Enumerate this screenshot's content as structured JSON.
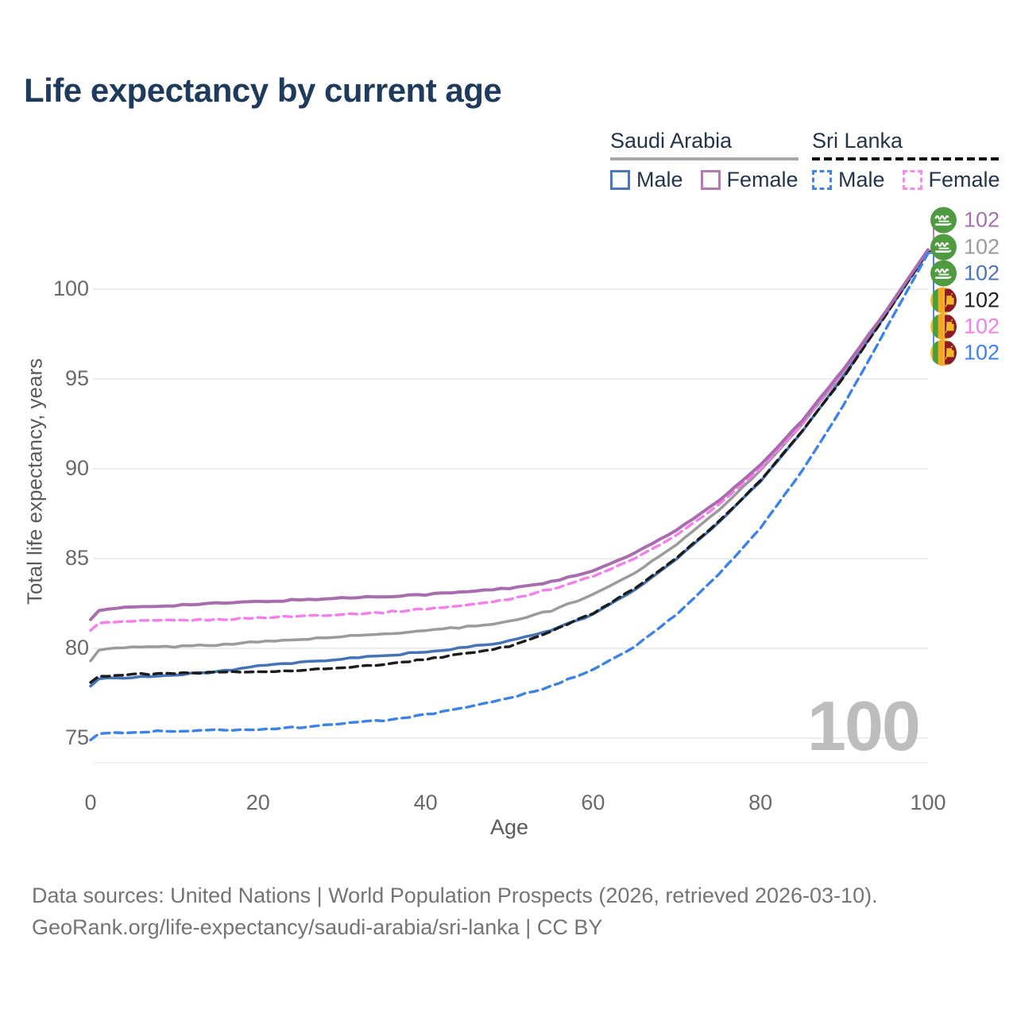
{
  "title": "Life expectancy by current age",
  "legend": {
    "saudi_arabia": {
      "label": "Saudi Arabia",
      "male": "Male",
      "female": "Female"
    },
    "sri_lanka": {
      "label": "Sri Lanka",
      "male": "Male",
      "female": "Female"
    }
  },
  "watermark": "100",
  "footer": {
    "line1": "Data sources: United Nations | World Population Prospects (2026, retrieved 2026-03-10).",
    "line2": "GeoRank.org/life-expectancy/saudi-arabia/sri-lanka | CC BY"
  },
  "colors": {
    "title": "#1e3a5c",
    "gridline": "#e7e7e7",
    "axis_text": "#696969",
    "watermark": "#bdbdbd",
    "saudi_female": "#a96daf",
    "saudi_total": "#9b9b9b",
    "saudi_male": "#4473b8",
    "sri_lanka_total": "#1c1c1c",
    "sri_lanka_female": "#f57dec",
    "sri_lanka_male": "#3c83e8",
    "saudi_flag_green": "#509b41",
    "sri_lanka_maroon": "#8d1b26",
    "sri_lanka_orange": "#f5a623",
    "sri_lanka_green": "#4a9e3c",
    "sri_lanka_gold": "#f0b92c"
  },
  "end_labels": [
    {
      "series": "Saudi Arabia Female",
      "flag": "saudi-arabia",
      "value": "102",
      "color": "#a86fae"
    },
    {
      "series": "Saudi Arabia Total",
      "flag": "saudi-arabia",
      "value": "102",
      "color": "#9b9b9b"
    },
    {
      "series": "Saudi Arabia Male",
      "flag": "saudi-arabia",
      "value": "102",
      "color": "#4a74bc"
    },
    {
      "series": "Sri Lanka Total",
      "flag": "sri-lanka",
      "value": "102",
      "color": "#1f1f1f"
    },
    {
      "series": "Sri Lanka Female",
      "flag": "sri-lanka",
      "value": "102",
      "color": "#f47ee9"
    },
    {
      "series": "Sri Lanka Male",
      "flag": "sri-lanka",
      "value": "102",
      "color": "#3c83e8"
    }
  ],
  "chart_data": {
    "type": "line",
    "title": "Life expectancy by current age",
    "xlabel": "Age",
    "ylabel": "Total life expectancy, years",
    "xlim": [
      0,
      100
    ],
    "ylim": [
      73.5,
      103
    ],
    "x_ticks": [
      0,
      20,
      40,
      60,
      80,
      100
    ],
    "y_ticks": [
      75,
      80,
      85,
      90,
      95,
      100
    ],
    "grid": "horizontal",
    "legend_position": "top-right",
    "x": [
      0,
      1,
      3,
      5,
      10,
      15,
      20,
      25,
      30,
      35,
      40,
      45,
      50,
      55,
      60,
      65,
      70,
      75,
      80,
      85,
      90,
      95,
      100
    ],
    "series": [
      {
        "name": "Saudi Arabia Female",
        "country": "Saudi Arabia",
        "sex": "Female",
        "style": "solid",
        "color": "#a96daf",
        "width": 4,
        "values": [
          81.6,
          82.1,
          82.2,
          82.3,
          82.4,
          82.5,
          82.6,
          82.7,
          82.8,
          82.9,
          83.0,
          83.15,
          83.35,
          83.7,
          84.3,
          85.3,
          86.6,
          88.2,
          90.2,
          92.7,
          95.6,
          98.8,
          102.2
        ]
      },
      {
        "name": "Sri Lanka Female",
        "country": "Sri Lanka",
        "sex": "Female",
        "style": "dashed",
        "color": "#f57dec",
        "width": 3.4,
        "values": [
          81.0,
          81.4,
          81.45,
          81.5,
          81.55,
          81.6,
          81.7,
          81.8,
          81.9,
          82.0,
          82.2,
          82.4,
          82.75,
          83.3,
          84.0,
          85.0,
          86.3,
          88.0,
          90.0,
          92.5,
          95.5,
          98.75,
          102.2
        ]
      },
      {
        "name": "Saudi Arabia Total",
        "country": "Saudi Arabia",
        "sex": "Both",
        "style": "solid",
        "color": "#9b9b9b",
        "width": 3.5,
        "values": [
          79.3,
          79.9,
          80.0,
          80.05,
          80.1,
          80.2,
          80.35,
          80.5,
          80.65,
          80.8,
          81.0,
          81.2,
          81.5,
          82.1,
          83.0,
          84.2,
          85.8,
          87.7,
          89.9,
          92.5,
          95.4,
          98.7,
          102.1
        ]
      },
      {
        "name": "Saudi Arabia Male",
        "country": "Saudi Arabia",
        "sex": "Male",
        "style": "solid",
        "color": "#4473b8",
        "width": 3.5,
        "values": [
          77.9,
          78.3,
          78.35,
          78.4,
          78.5,
          78.7,
          79.0,
          79.2,
          79.4,
          79.6,
          79.8,
          80.05,
          80.4,
          81.0,
          81.9,
          83.25,
          85.0,
          87.0,
          89.3,
          92.1,
          95.2,
          98.6,
          102.1
        ]
      },
      {
        "name": "Sri Lanka Total",
        "country": "Sri Lanka",
        "sex": "Both",
        "style": "dashed",
        "color": "#1c1c1c",
        "width": 3.4,
        "values": [
          78.1,
          78.45,
          78.5,
          78.55,
          78.6,
          78.65,
          78.7,
          78.8,
          78.9,
          79.1,
          79.4,
          79.7,
          80.1,
          80.95,
          81.95,
          83.35,
          85.05,
          87.05,
          89.35,
          92.1,
          95.15,
          98.6,
          102.1
        ]
      },
      {
        "name": "Sri Lanka Male",
        "country": "Sri Lanka",
        "sex": "Male",
        "style": "dashed",
        "color": "#3c83e8",
        "width": 3.4,
        "values": [
          74.9,
          75.25,
          75.3,
          75.35,
          75.4,
          75.45,
          75.5,
          75.6,
          75.8,
          76.0,
          76.3,
          76.7,
          77.2,
          77.9,
          78.8,
          80.1,
          81.9,
          84.1,
          86.7,
          89.9,
          93.6,
          97.8,
          102.0
        ]
      }
    ]
  }
}
